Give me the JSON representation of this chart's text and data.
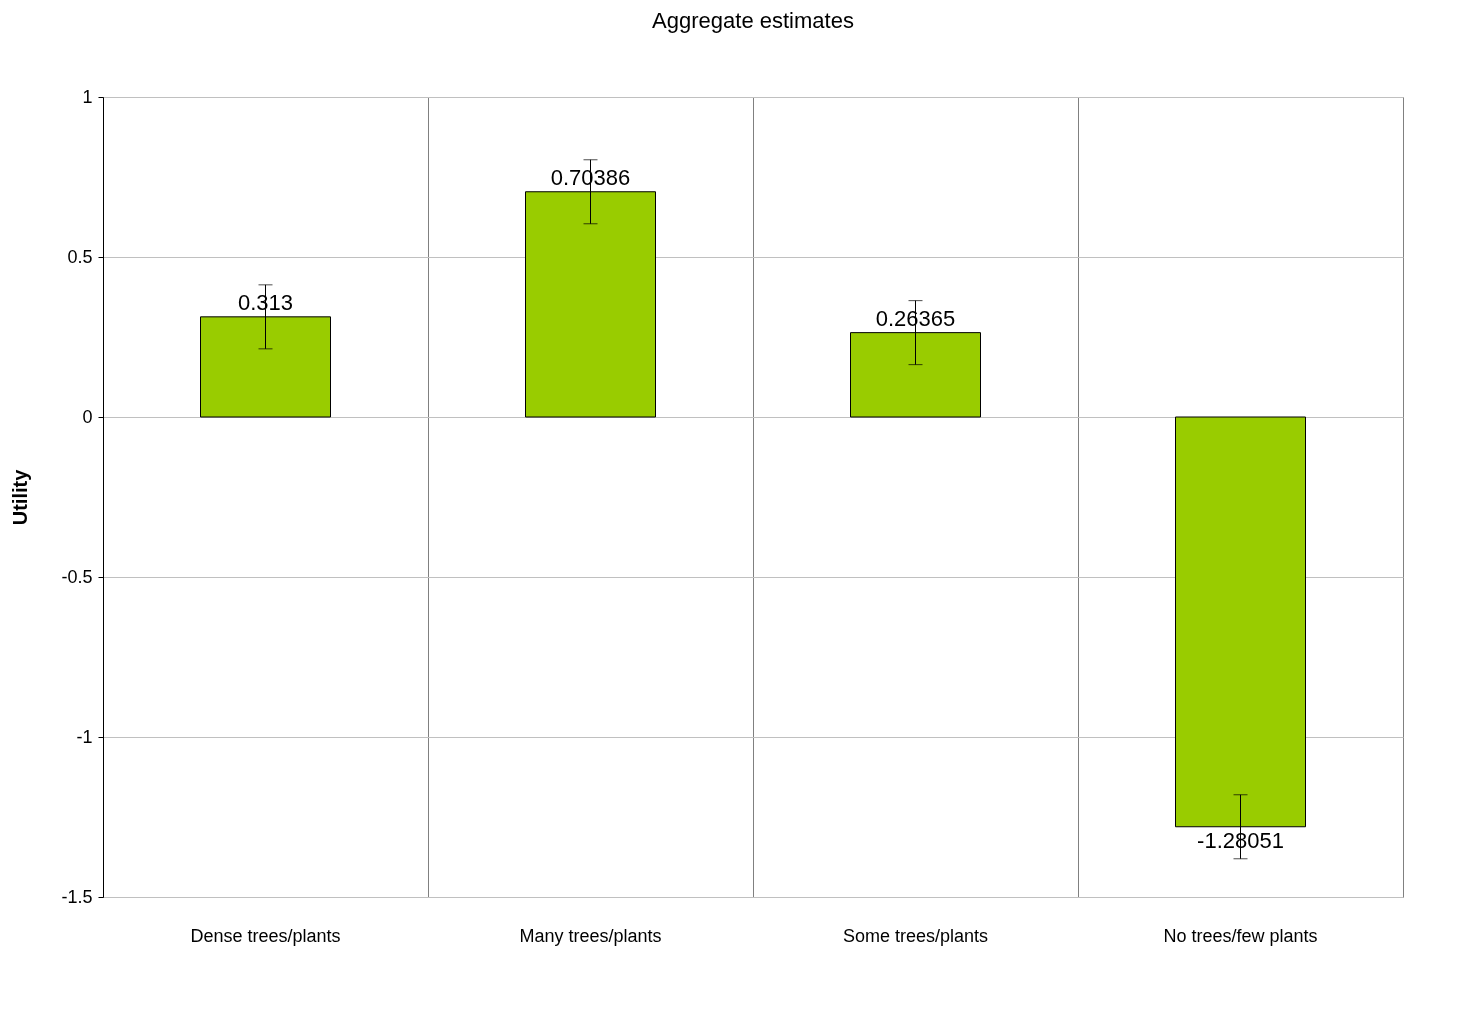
{
  "chart_data": {
    "type": "bar",
    "title": "Aggregate estimates",
    "ylabel": "Utility",
    "categories": [
      "Dense trees/plants",
      "Many trees/plants",
      "Some trees/plants",
      "No trees/few plants"
    ],
    "values": [
      0.313,
      0.70386,
      0.26365,
      -1.28051
    ],
    "errors": [
      0.1,
      0.1,
      0.1,
      0.1
    ],
    "color": "#99cc00",
    "ylim": [
      -1.5,
      1
    ],
    "yticks": [
      -1.5,
      -1,
      -0.5,
      0,
      0.5,
      1
    ],
    "grid": true,
    "data_labels": true
  }
}
